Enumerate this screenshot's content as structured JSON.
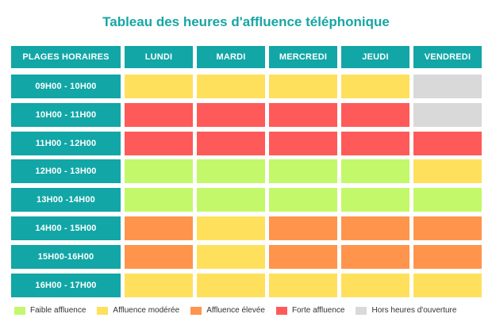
{
  "title": "Tableau des heures d'affluence téléphonique",
  "chart_data": {
    "type": "heatmap",
    "title": "Tableau des heures d'affluence téléphonique",
    "row_header": "PLAGES HORAIRES",
    "columns": [
      "LUNDI",
      "MARDI",
      "MERCREDI",
      "JEUDI",
      "VENDREDI"
    ],
    "rows": [
      "09H00 - 10H00",
      "10H00 - 11H00",
      "11H00 - 12H00",
      "12H00 - 13H00",
      "13H00 -14H00",
      "14H00 - 15H00",
      "15H00-16H00",
      "16H00 - 17H00"
    ],
    "levels": {
      "faible": {
        "label": "Faible affluence",
        "color": "#c3f86a"
      },
      "moderee": {
        "label": "Affluence modérée",
        "color": "#ffe05c"
      },
      "elevee": {
        "label": "Affluence élevée",
        "color": "#ff944d"
      },
      "forte": {
        "label": "Forte affluence",
        "color": "#ff5a5a"
      },
      "hors": {
        "label": "Hors heures d'ouverture",
        "color": "#d9d9d9"
      }
    },
    "legend_order": [
      "faible",
      "moderee",
      "elevee",
      "forte",
      "hors"
    ],
    "values": [
      [
        "moderee",
        "moderee",
        "moderee",
        "moderee",
        "hors"
      ],
      [
        "forte",
        "forte",
        "forte",
        "forte",
        "hors"
      ],
      [
        "forte",
        "forte",
        "forte",
        "forte",
        "forte"
      ],
      [
        "faible",
        "faible",
        "faible",
        "faible",
        "moderee"
      ],
      [
        "faible",
        "faible",
        "faible",
        "faible",
        "faible"
      ],
      [
        "elevee",
        "moderee",
        "elevee",
        "elevee",
        "elevee"
      ],
      [
        "elevee",
        "moderee",
        "elevee",
        "elevee",
        "elevee"
      ],
      [
        "moderee",
        "moderee",
        "moderee",
        "moderee",
        "moderee"
      ]
    ],
    "legend_position": "bottom"
  }
}
